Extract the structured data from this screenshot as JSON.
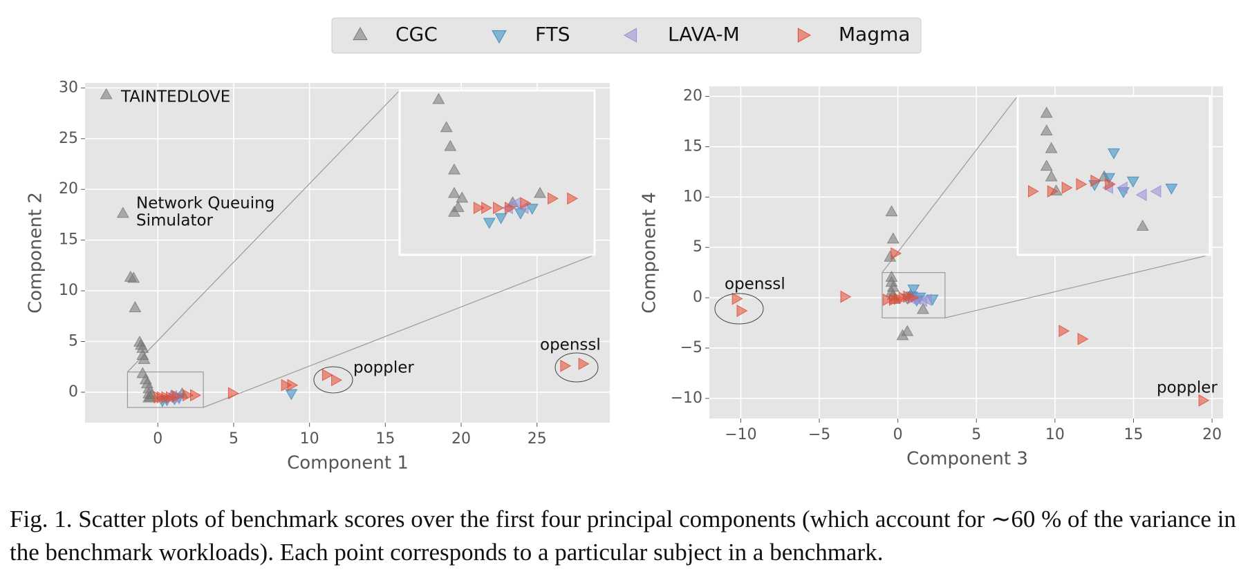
{
  "caption": "Fig. 1.  Scatter plots of benchmark scores over the first four principal components (which account for ∼60 % of the variance in the benchmark workloads). Each point corresponds to a particular subject in a benchmark.",
  "chart_data": [
    {
      "type": "scatter",
      "xlabel": "Component 1",
      "ylabel": "Component 2",
      "xlim": [
        -4.8,
        29.8
      ],
      "ylim": [
        -3,
        30.5
      ],
      "xticks": [
        0,
        5,
        10,
        15,
        20,
        25
      ],
      "yticks": [
        0,
        5,
        10,
        15,
        20,
        25,
        30
      ],
      "grid": true,
      "inset": {
        "xlim": [
          -2,
          3
        ],
        "ylim": [
          -1.5,
          2
        ]
      },
      "series": [
        {
          "name": "CGC",
          "color": "#777777",
          "marker": "up",
          "x": [
            -3.4,
            -2.3,
            -1.8,
            -1.6,
            -1.5,
            -1.2,
            -1.1,
            -1.0,
            -1.0,
            -0.9,
            -1.0,
            -0.8,
            -0.7,
            -0.6,
            -0.6,
            -0.5,
            -0.6,
            -0.4,
            1.6,
            0.9
          ],
          "values": [
            29.3,
            17.6,
            11.3,
            11.2,
            8.3,
            4.9,
            4.6,
            4.3,
            3.6,
            3.2,
            1.8,
            1.2,
            0.8,
            0.3,
            -0.2,
            -0.5,
            -0.6,
            -0.3,
            -0.2,
            -0.4
          ]
        },
        {
          "name": "FTS",
          "color": "#348ABD",
          "marker": "down",
          "x": [
            8.8,
            0.3,
            0.6,
            1.1,
            1.4
          ],
          "values": [
            -0.1,
            -0.8,
            -0.7,
            -0.6,
            -0.5
          ]
        },
        {
          "name": "LAVA-M",
          "color": "#988ED5",
          "marker": "left",
          "x": [
            0.8,
            1.0,
            1.2
          ],
          "values": [
            -0.5,
            -0.4,
            -0.5
          ]
        },
        {
          "name": "Magma",
          "color": "#E24A33",
          "marker": "right",
          "x": [
            0,
            0.2,
            0.5,
            0.8,
            1.2,
            1.9,
            2.4,
            4.9,
            8.4,
            8.8,
            11.1,
            11.7,
            26.8,
            28.0
          ],
          "values": [
            -0.5,
            -0.5,
            -0.5,
            -0.5,
            -0.4,
            -0.3,
            -0.3,
            -0.1,
            0.7,
            0.7,
            1.7,
            1.2,
            2.6,
            2.8
          ]
        }
      ],
      "annotations": [
        {
          "text": "TAINTEDLOVE"
        },
        {
          "text": "Network Queuing"
        },
        {
          "text": "Simulator"
        },
        {
          "text": "poppler"
        },
        {
          "text": "openssl"
        }
      ]
    },
    {
      "type": "scatter",
      "xlabel": "Component 3",
      "ylabel": "Component 4",
      "xlim": [
        -12,
        20.7
      ],
      "ylim": [
        -12,
        21
      ],
      "xticks": [
        {
          "value": -10,
          "label": "−10"
        },
        {
          "value": -5,
          "label": "−5"
        },
        0,
        5,
        10,
        15,
        20
      ],
      "yticks": [
        {
          "value": -10,
          "label": "−10"
        },
        {
          "value": -5,
          "label": "−5"
        },
        0,
        5,
        10,
        15,
        20
      ],
      "grid": true,
      "inset": {
        "xlim": [
          -1,
          3
        ],
        "ylim": [
          -2,
          2.5
        ]
      },
      "series": [
        {
          "name": "CGC",
          "color": "#777777",
          "marker": "up",
          "x": [
            -0.4,
            -0.3,
            -0.5,
            -0.4,
            -0.4,
            -0.3,
            -0.4,
            -0.3,
            -0.2,
            1.6,
            0.3,
            0.6,
            0.8
          ],
          "values": [
            8.5,
            5.8,
            4,
            2,
            1.5,
            1,
            0.5,
            0.2,
            -0.2,
            -1.2,
            -3.8,
            -3.4,
            0.2
          ]
        },
        {
          "name": "FTS",
          "color": "#348ABD",
          "marker": "down",
          "x": [
            1.0,
            2.2,
            1.4,
            0.9,
            0.6,
            1.2
          ],
          "values": [
            0.9,
            -0.1,
            0.1,
            0.2,
            0,
            -0.2
          ]
        },
        {
          "name": "LAVA-M",
          "color": "#988ED5",
          "marker": "left",
          "x": [
            1.2,
            1.6,
            1.9,
            0.9
          ],
          "values": [
            -0.1,
            -0.3,
            -0.2,
            -0.1
          ]
        },
        {
          "name": "Magma",
          "color": "#E24A33",
          "marker": "right",
          "x": [
            -10.3,
            -10,
            -3.4,
            -0.2,
            -0.7,
            -0.3,
            0,
            0.3,
            0.6,
            0.9,
            10.5,
            11.7,
            19.4
          ],
          "values": [
            -0.1,
            -1.3,
            0.1,
            4.4,
            -0.2,
            -0.2,
            -0.1,
            0,
            0.1,
            0,
            -3.3,
            -4.1,
            -10.2
          ]
        }
      ],
      "annotations": [
        {
          "text": "openssl"
        },
        {
          "text": "poppler"
        }
      ]
    }
  ]
}
